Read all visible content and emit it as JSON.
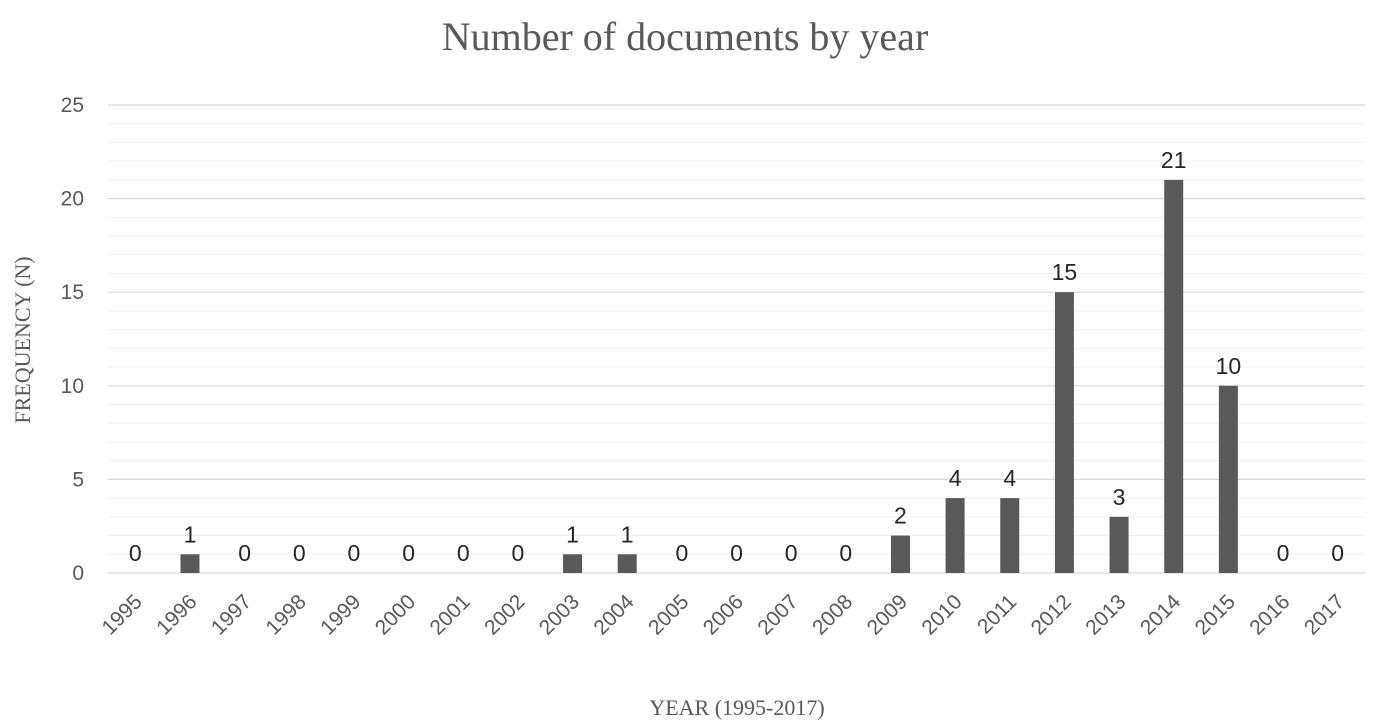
{
  "chart_data": {
    "type": "bar",
    "title": "Number of documents by year",
    "xlabel": "YEAR (1995-2017)",
    "ylabel": "FREQUENCY (N)",
    "ylim": [
      0,
      25
    ],
    "yticks": [
      0,
      5,
      10,
      15,
      20,
      25
    ],
    "grid": true,
    "categories": [
      "1995",
      "1996",
      "1997",
      "1998",
      "1999",
      "2000",
      "2001",
      "2002",
      "2003",
      "2004",
      "2005",
      "2006",
      "2007",
      "2008",
      "2009",
      "2010",
      "2011",
      "2012",
      "2013",
      "2014",
      "2015",
      "2016",
      "2017"
    ],
    "values": [
      0,
      1,
      0,
      0,
      0,
      0,
      0,
      0,
      1,
      1,
      0,
      0,
      0,
      0,
      2,
      4,
      4,
      15,
      3,
      21,
      10,
      0,
      0
    ],
    "bar_color": "#595959"
  }
}
